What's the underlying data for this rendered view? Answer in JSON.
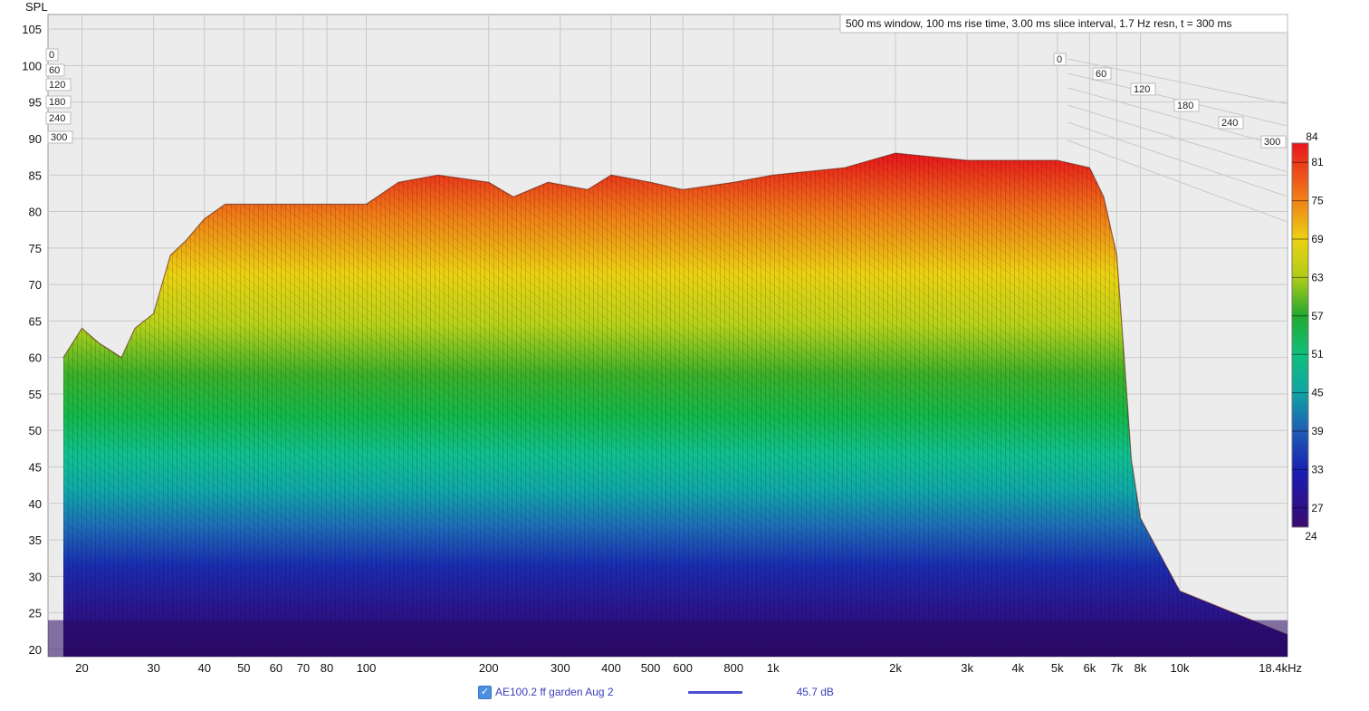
{
  "chart_data": {
    "type": "waterfall",
    "y_axis_label": "SPL",
    "yticks": [
      105,
      100,
      95,
      90,
      85,
      80,
      75,
      70,
      65,
      60,
      55,
      50,
      45,
      40,
      35,
      30,
      25,
      20
    ],
    "ylim": [
      19,
      107
    ],
    "xscale": "log",
    "xlim_hz": [
      16.5,
      18400
    ],
    "xticks": [
      {
        "hz": 20,
        "label": "20"
      },
      {
        "hz": 30,
        "label": "30"
      },
      {
        "hz": 40,
        "label": "40"
      },
      {
        "hz": 50,
        "label": "50"
      },
      {
        "hz": 60,
        "label": "60"
      },
      {
        "hz": 70,
        "label": "70"
      },
      {
        "hz": 80,
        "label": "80"
      },
      {
        "hz": 100,
        "label": "100"
      },
      {
        "hz": 200,
        "label": "200"
      },
      {
        "hz": 300,
        "label": "300"
      },
      {
        "hz": 400,
        "label": "400"
      },
      {
        "hz": 500,
        "label": "500"
      },
      {
        "hz": 600,
        "label": "600"
      },
      {
        "hz": 800,
        "label": "800"
      },
      {
        "hz": 1000,
        "label": "1k"
      },
      {
        "hz": 2000,
        "label": "2k"
      },
      {
        "hz": 3000,
        "label": "3k"
      },
      {
        "hz": 4000,
        "label": "4k"
      },
      {
        "hz": 5000,
        "label": "5k"
      },
      {
        "hz": 6000,
        "label": "6k"
      },
      {
        "hz": 7000,
        "label": "7k"
      },
      {
        "hz": 8000,
        "label": "8k"
      },
      {
        "hz": 10000,
        "label": "10k"
      },
      {
        "hz": 18400,
        "label": "18.4kHz"
      }
    ],
    "time_labels_left": [
      "0",
      "60",
      "120",
      "180",
      "240",
      "300"
    ],
    "time_labels_right": [
      "0",
      "60",
      "120",
      "180",
      "240",
      "300"
    ],
    "time_unit": "ms",
    "info": "500 ms window, 100 ms rise time, 3.00 ms slice interval, 1.7 Hz resn, t = 300 ms",
    "colorbar": {
      "ticks": [
        "84",
        "81",
        "75",
        "69",
        "63",
        "57",
        "51",
        "45",
        "39",
        "33",
        "27",
        "24"
      ],
      "range": [
        24,
        84
      ]
    },
    "grid": true,
    "profile": [
      {
        "hz": 18,
        "db": 60
      },
      {
        "hz": 20,
        "db": 64
      },
      {
        "hz": 22,
        "db": 62
      },
      {
        "hz": 25,
        "db": 60
      },
      {
        "hz": 27,
        "db": 64
      },
      {
        "hz": 30,
        "db": 66
      },
      {
        "hz": 33,
        "db": 74
      },
      {
        "hz": 36,
        "db": 76
      },
      {
        "hz": 40,
        "db": 79
      },
      {
        "hz": 45,
        "db": 81
      },
      {
        "hz": 50,
        "db": 81
      },
      {
        "hz": 60,
        "db": 81
      },
      {
        "hz": 70,
        "db": 81
      },
      {
        "hz": 80,
        "db": 81
      },
      {
        "hz": 100,
        "db": 81
      },
      {
        "hz": 120,
        "db": 84
      },
      {
        "hz": 150,
        "db": 85
      },
      {
        "hz": 200,
        "db": 84
      },
      {
        "hz": 230,
        "db": 82
      },
      {
        "hz": 280,
        "db": 84
      },
      {
        "hz": 350,
        "db": 83
      },
      {
        "hz": 400,
        "db": 85
      },
      {
        "hz": 500,
        "db": 84
      },
      {
        "hz": 600,
        "db": 83
      },
      {
        "hz": 800,
        "db": 84
      },
      {
        "hz": 1000,
        "db": 85
      },
      {
        "hz": 1500,
        "db": 86
      },
      {
        "hz": 2000,
        "db": 88
      },
      {
        "hz": 3000,
        "db": 87
      },
      {
        "hz": 4000,
        "db": 87
      },
      {
        "hz": 5000,
        "db": 87
      },
      {
        "hz": 6000,
        "db": 86
      },
      {
        "hz": 6500,
        "db": 82
      },
      {
        "hz": 7000,
        "db": 74
      },
      {
        "hz": 7300,
        "db": 60
      },
      {
        "hz": 7600,
        "db": 46
      },
      {
        "hz": 8000,
        "db": 38
      },
      {
        "hz": 10000,
        "db": 28
      },
      {
        "hz": 18400,
        "db": 22
      }
    ]
  },
  "legend": {
    "checked": true,
    "trace_name": "AE100.2 ff garden Aug 2",
    "value": "45.7 dB",
    "line_color": "#4b4fd0"
  },
  "colors": {
    "grid": "#c9c9c9",
    "plot_bg": "#ececec",
    "floor": "#2a0a66"
  }
}
